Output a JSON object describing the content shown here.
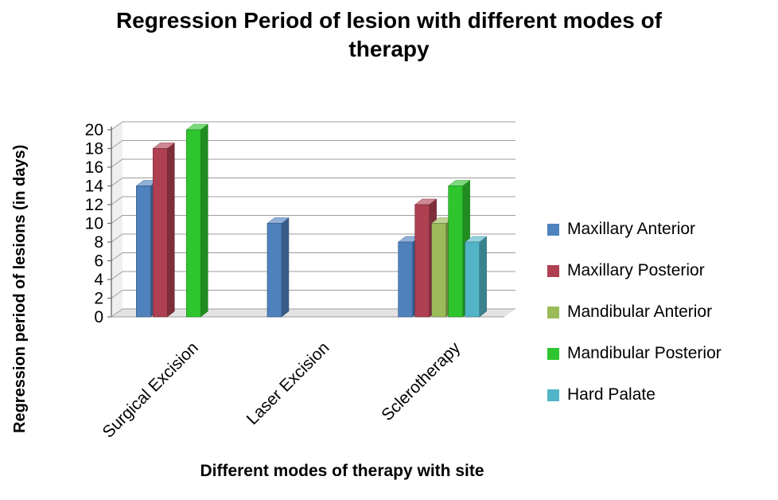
{
  "chart_data": {
    "type": "bar",
    "style_3d": true,
    "title": "Regression Period of lesion with different modes of therapy",
    "xlabel": "Different modes of therapy with site",
    "ylabel": "Regression period of lesions (in days)",
    "ylim": [
      0,
      20
    ],
    "ytick_step": 2,
    "grid": true,
    "legend_position": "right",
    "categories": [
      "Surgical Excision",
      "Laser Excision",
      "Sclerotherapy"
    ],
    "series": [
      {
        "name": "Maxillary Anterior",
        "color": "#4F81BD",
        "values": [
          14,
          10,
          8
        ]
      },
      {
        "name": "Maxillary Posterior",
        "color": "#AF4052",
        "values": [
          18,
          0,
          12
        ]
      },
      {
        "name": "Mandibular Anterior",
        "color": "#9BBB59",
        "values": [
          0,
          0,
          10
        ]
      },
      {
        "name": "Mandibular Posterior",
        "color": "#2EC52E",
        "values": [
          20,
          0,
          14
        ]
      },
      {
        "name": "Hard Palate",
        "color": "#52B5C7",
        "values": [
          0,
          0,
          8
        ]
      }
    ]
  }
}
